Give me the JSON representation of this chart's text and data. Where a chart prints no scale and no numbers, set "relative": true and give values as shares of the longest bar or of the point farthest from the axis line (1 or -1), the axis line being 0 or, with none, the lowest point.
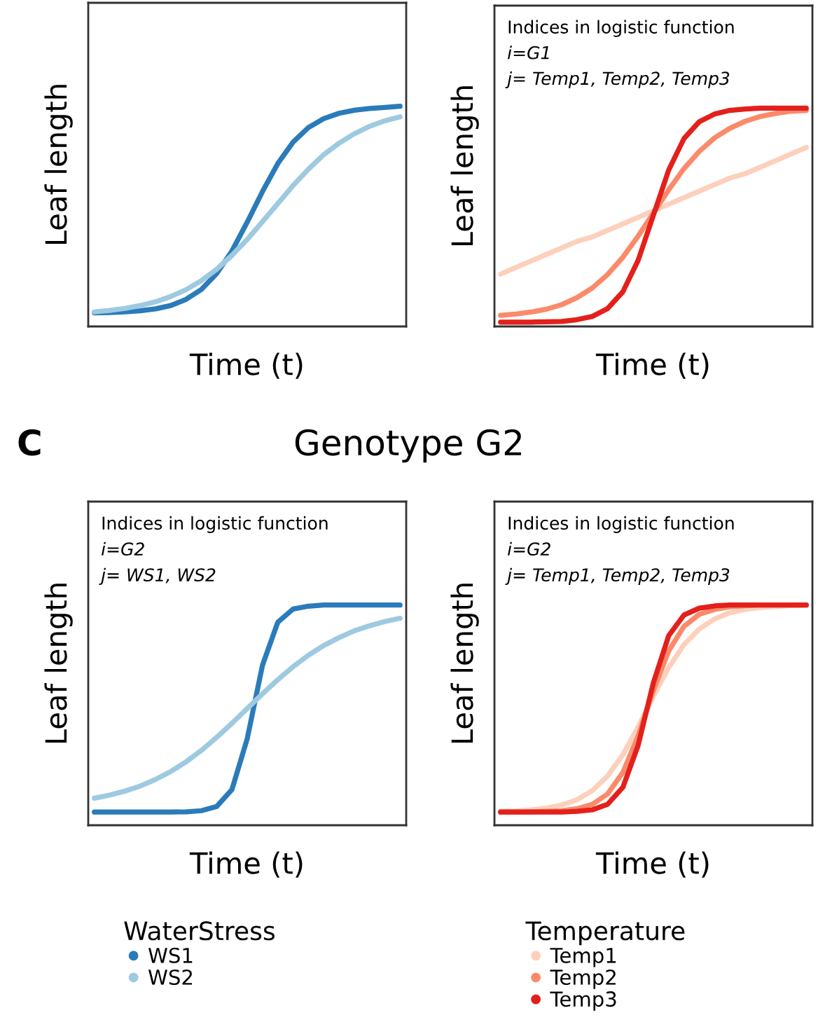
{
  "chart_data": [
    {
      "type": "line",
      "relative": true,
      "xlabel": "Time (t)",
      "ylabel": "Leaf length",
      "categories": [
        null,
        null,
        null,
        null,
        null,
        null,
        null,
        null,
        null,
        null,
        null,
        null,
        null,
        null,
        null,
        null,
        null,
        null,
        null,
        null,
        null
      ],
      "series": [
        {
          "color": "#2b7bba",
          "values": [
            0.062,
            0.063,
            0.066,
            0.071,
            0.08,
            0.095,
            0.123,
            0.168,
            0.24,
            0.343,
            0.474,
            0.613,
            0.74,
            0.837,
            0.903,
            0.944,
            0.968,
            0.982,
            0.99,
            0.995,
            1.0
          ]
        },
        {
          "color": "#9ecae1",
          "values": [
            0.066,
            0.073,
            0.082,
            0.095,
            0.112,
            0.136,
            0.167,
            0.208,
            0.26,
            0.323,
            0.395,
            0.476,
            0.558,
            0.64,
            0.714,
            0.78,
            0.832,
            0.875,
            0.909,
            0.934,
            0.952
          ]
        }
      ]
    },
    {
      "type": "line",
      "relative": true,
      "xlabel": "Time (t)",
      "ylabel": "Leaf length",
      "annotations": [
        "Indices in logistic function",
        "i=G1",
        "j= Temp1, Temp2, Temp3"
      ],
      "categories": [
        null,
        null,
        null,
        null,
        null,
        null,
        null,
        null,
        null,
        null,
        null,
        null,
        null,
        null,
        null,
        null,
        null,
        null,
        null,
        null,
        null
      ],
      "series": [
        {
          "color": "#fdd0bc",
          "values": [
            0.24,
            0.27,
            0.3,
            0.33,
            0.36,
            0.39,
            0.41,
            0.44,
            0.47,
            0.5,
            0.53,
            0.56,
            0.59,
            0.62,
            0.65,
            0.68,
            0.7,
            0.73,
            0.76,
            0.79,
            0.82
          ]
        },
        {
          "color": "#fb8a6a",
          "values": [
            0.051,
            0.057,
            0.066,
            0.079,
            0.1,
            0.132,
            0.176,
            0.238,
            0.317,
            0.414,
            0.52,
            0.626,
            0.723,
            0.802,
            0.864,
            0.908,
            0.94,
            0.962,
            0.976,
            0.986,
            0.99
          ]
        },
        {
          "color": "#e3201b",
          "values": [
            0.02,
            0.02,
            0.02,
            0.021,
            0.023,
            0.031,
            0.046,
            0.082,
            0.159,
            0.303,
            0.51,
            0.717,
            0.861,
            0.938,
            0.973,
            0.99,
            0.996,
            1.0,
            1.0,
            1.0,
            1.0
          ]
        }
      ]
    },
    {
      "type": "line",
      "relative": true,
      "title": "Genotype G2",
      "xlabel": "Time (t)",
      "ylabel": "Leaf length",
      "legend": "bottom",
      "legend_title": "WaterStress",
      "annotations": [
        "C",
        "Indices in logistic function",
        "i=G2",
        "j= WS1, WS2"
      ],
      "categories": [
        null,
        null,
        null,
        null,
        null,
        null,
        null,
        null,
        null,
        null,
        null,
        null,
        null,
        null,
        null,
        null,
        null,
        null,
        null,
        null,
        null
      ],
      "series": [
        {
          "name": "WS1",
          "color": "#2b7bba",
          "values": [
            0.06,
            0.06,
            0.06,
            0.06,
            0.06,
            0.06,
            0.061,
            0.066,
            0.085,
            0.162,
            0.393,
            0.727,
            0.922,
            0.982,
            0.995,
            1.0,
            1.0,
            1.0,
            1.0,
            1.0,
            1.0
          ]
        },
        {
          "name": "WS2",
          "color": "#9ecae1",
          "values": [
            0.123,
            0.137,
            0.155,
            0.178,
            0.208,
            0.244,
            0.288,
            0.34,
            0.399,
            0.463,
            0.53,
            0.597,
            0.661,
            0.72,
            0.772,
            0.816,
            0.852,
            0.883,
            0.906,
            0.925,
            0.94
          ]
        }
      ]
    },
    {
      "type": "line",
      "relative": true,
      "xlabel": "Time (t)",
      "ylabel": "Leaf length",
      "legend": "bottom",
      "legend_title": "Temperature",
      "annotations": [
        "Indices in logistic function",
        "i=G2",
        "j= Temp1, Temp2, Temp3"
      ],
      "categories": [
        null,
        null,
        null,
        null,
        null,
        null,
        null,
        null,
        null,
        null,
        null,
        null,
        null,
        null,
        null,
        null,
        null,
        null,
        null,
        null,
        null
      ],
      "series": [
        {
          "name": "Temp1",
          "color": "#fdd0bc",
          "values": [
            0.063,
            0.065,
            0.07,
            0.078,
            0.092,
            0.116,
            0.157,
            0.223,
            0.32,
            0.447,
            0.586,
            0.717,
            0.82,
            0.892,
            0.937,
            0.965,
            0.98,
            0.989,
            0.994,
            0.997,
            1.0
          ]
        },
        {
          "name": "Temp2",
          "color": "#fb8a6a",
          "values": [
            0.06,
            0.06,
            0.061,
            0.063,
            0.066,
            0.075,
            0.095,
            0.142,
            0.24,
            0.406,
            0.613,
            0.792,
            0.903,
            0.958,
            0.98,
            0.992,
            0.997,
            1.0,
            1.0,
            1.0,
            1.0
          ]
        },
        {
          "name": "Temp3",
          "color": "#e3201b",
          "values": [
            0.06,
            0.06,
            0.06,
            0.06,
            0.06,
            0.063,
            0.07,
            0.095,
            0.172,
            0.363,
            0.648,
            0.861,
            0.955,
            0.986,
            0.996,
            1.0,
            1.0,
            1.0,
            1.0,
            1.0,
            1.0
          ]
        }
      ]
    }
  ]
}
